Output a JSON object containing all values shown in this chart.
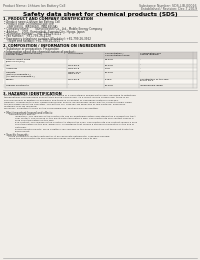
{
  "bg_color": "#f0ede8",
  "text_color": "#333333",
  "header_left": "Product Name: Lithium Ion Battery Cell",
  "header_right1": "Substance Number: SDS-LIB-00016",
  "header_right2": "Established / Revision: Dec.7.2019",
  "title": "Safety data sheet for chemical products (SDS)",
  "s1_title": "1. PRODUCT AND COMPANY IDENTIFICATION",
  "s1_lines": [
    "• Product name: Lithium Ion Battery Cell",
    "• Product code: Cylindrical-type cell",
    "    (INR18650L, INR18650L, INR18650A)",
    "• Company name:       Sanyo Electric Co., Ltd., Mobile Energy Company",
    "• Address:    2001, Kamionzaki, Sumoto-City, Hyogo, Japan",
    "• Telephone number:    +81-799-26-4111",
    "• Fax number:   +81-799-26-4129",
    "• Emergency telephone number (Weekday): +81-799-26-3962",
    "    (Night and holiday): +81-799-26-3101"
  ],
  "s2_title": "2. COMPOSITION / INFORMATION ON INGREDIENTS",
  "s2_prep": "• Substance or preparation: Preparation",
  "s2_info": "• Information about the chemical nature of product:",
  "tbl_cols": [
    0.01,
    0.33,
    0.52,
    0.7,
    0.98
  ],
  "tbl_hdr": [
    "Component / chemical name /\nSeveral name",
    "CAS number",
    "Concentration /\nConcentration range",
    "Classification and\nhazard labeling"
  ],
  "tbl_rows": [
    [
      "Lithium cobalt oxide\n(LiMn-CoO2(Co))",
      "-",
      "30-60%",
      "-"
    ],
    [
      "Iron",
      "7439-89-6",
      "10-30%",
      "-"
    ],
    [
      "Aluminum",
      "7429-90-5",
      "2-5%",
      "-"
    ],
    [
      "Graphite\n(Metal in graphite-1)\n(All-Metal in graphite-1)",
      "77592-42-5\n7782-44-2",
      "10-30%",
      "-"
    ],
    [
      "Copper",
      "7440-50-8",
      "5-15%",
      "Sensitization of the skin\ngroup No.2"
    ],
    [
      "Organic electrolyte",
      "-",
      "10-20%",
      "Inflammable liquid"
    ]
  ],
  "s3_title": "3. HAZARDS IDENTIFICATION",
  "s3_para1": [
    "For the battery cell, chemical materials are stored in a hermetically sealed metal case, designed to withstand",
    "temperatures and pressures encountered during normal use. As a result, during normal use, there is no",
    "physical danger of ignition or explosion and there is no danger of hazardous materials leakage.",
    "However, if exposed to a fire, added mechanical shocks, decomposed, when electric current forcibly flows,",
    "the gas inside cannot be operated. The battery cell case will be breached or fire-particles, hazardous",
    "materials may be released.",
    "Moreover, if heated strongly by the surrounding fire, soot gas may be emitted."
  ],
  "s3_bullet1": "• Most important hazard and effects:",
  "s3_human": "Human health effects:",
  "s3_human_lines": [
    "Inhalation: The release of the electrolyte has an anesthesia action and stimulates a respiratory tract.",
    "Skin contact: The release of the electrolyte stimulates a skin. The electrolyte skin contact causes a",
    "sore and stimulation on the skin.",
    "Eye contact: The release of the electrolyte stimulates eyes. The electrolyte eye contact causes a sore",
    "and stimulation on the eye. Especially, a substance that causes a strong inflammation of the eye is",
    "contained.",
    "Environmental effects: Since a battery cell remains in the environment, do not throw out it into the",
    "environment."
  ],
  "s3_bullet2": "• Specific hazards:",
  "s3_spec_lines": [
    "If the electrolyte contacts with water, it will generate detrimental hydrogen fluoride.",
    "Since the used electrolyte is inflammable liquid, do not bring close to fire."
  ]
}
